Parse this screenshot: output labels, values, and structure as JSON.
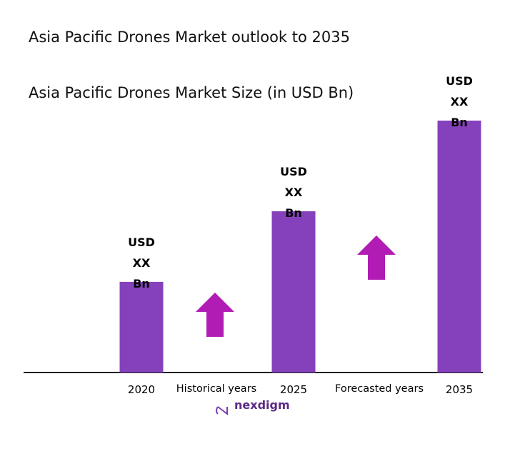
{
  "chart_data": {
    "type": "bar",
    "title": "Asia Pacific Drones Market outlook to 2035",
    "subtitle": "Asia Pacific Drones Market Size (in USD Bn)",
    "categories": [
      "2020",
      "2025",
      "2035"
    ],
    "values": [
      36,
      64,
      100
    ],
    "value_labels": [
      "USD XX Bn",
      "USD XX Bn",
      "USD XX Bn"
    ],
    "color": "#8541bb",
    "ylim": [
      0,
      100
    ],
    "annotations": [
      "Historical years",
      "Forecasted years"
    ],
    "arrow_color": "#b11cb5",
    "logo": "nexdigm"
  }
}
